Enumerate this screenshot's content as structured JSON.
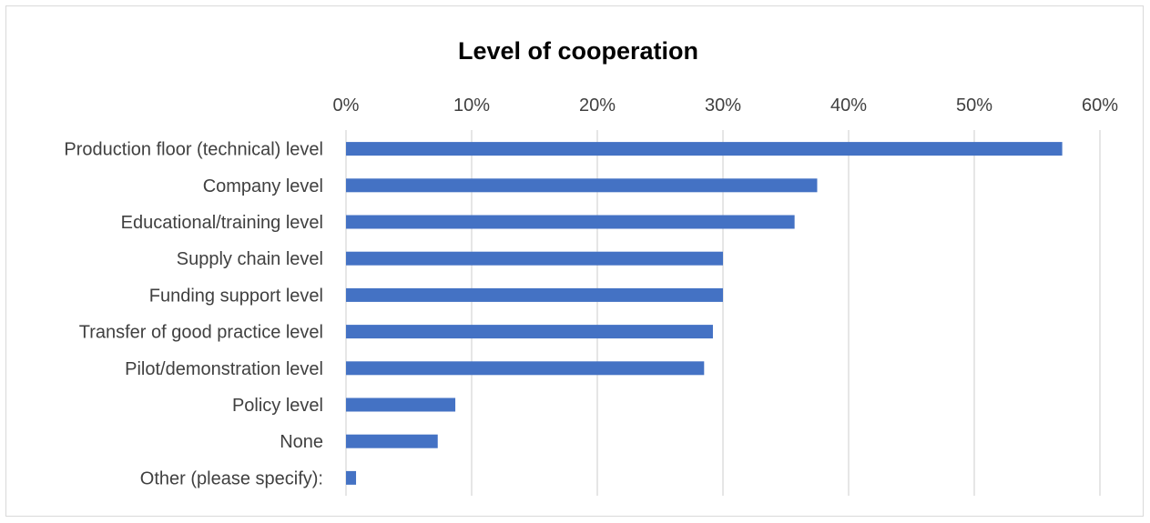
{
  "chart_data": {
    "type": "bar",
    "orientation": "horizontal",
    "title": "Level of cooperation",
    "xlabel": "",
    "ylabel": "",
    "xlim": [
      0,
      60
    ],
    "xticks": [
      "0%",
      "10%",
      "20%",
      "30%",
      "40%",
      "50%",
      "60%"
    ],
    "grid": true,
    "legend": "none",
    "bar_color": "#4472c4",
    "categories": [
      "Production floor (technical) level",
      "Company level",
      "Educational/training level",
      "Supply chain level",
      "Funding support level",
      "Transfer of good practice level",
      "Pilot/demonstration  level",
      "Policy level",
      "None",
      "Other (please specify):"
    ],
    "values": [
      57,
      37.5,
      35.7,
      30,
      30,
      29.2,
      28.5,
      8.7,
      7.3,
      0.8
    ]
  }
}
